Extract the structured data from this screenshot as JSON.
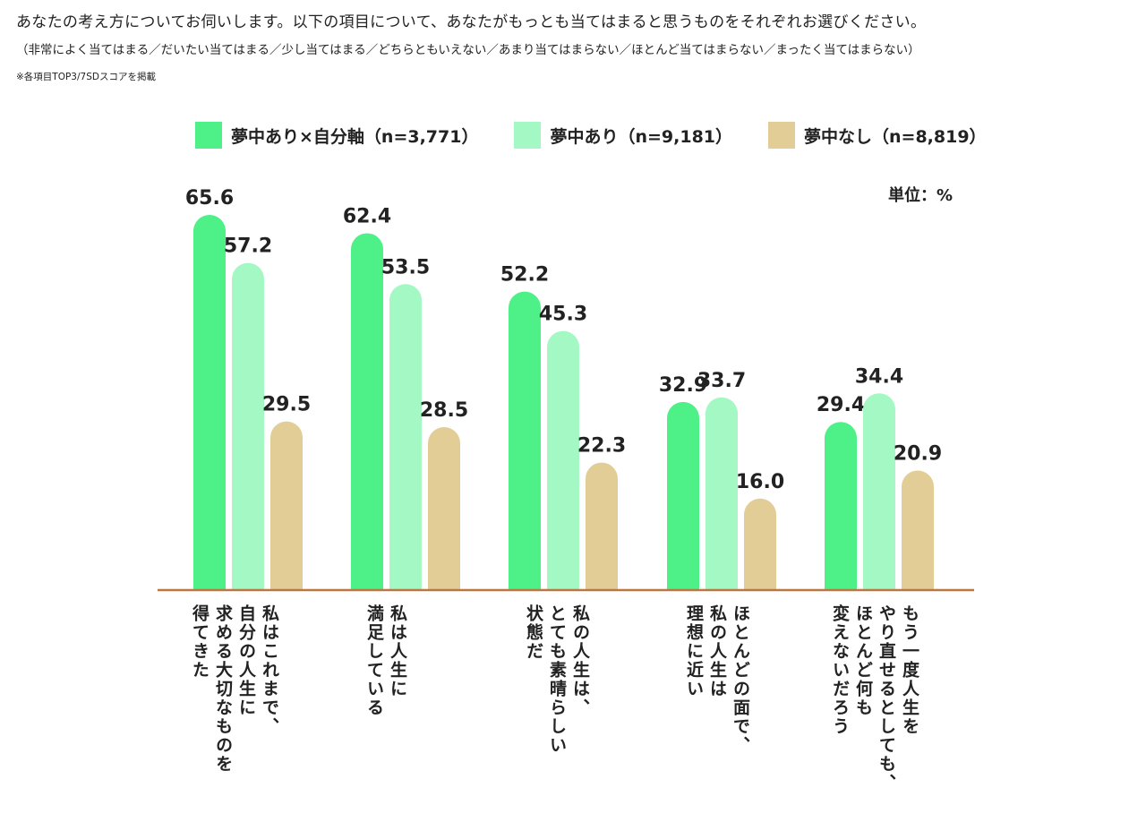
{
  "header": {
    "title": "あなたの考え方についてお伺いします。以下の項目について、あなたがもっとも当てはまると思うものをそれぞれお選びください。",
    "subtitle": "（非常によく当てはまる／だいたい当てはまる／少し当てはまる／どちらともいえない／あまり当てはまらない／ほとんど当てはまらない／まったく当てはまらない）",
    "note": "※各項目TOP3/7SDスコアを掲載"
  },
  "legend": [
    {
      "label": "夢中あり×自分軸（n=3,771）",
      "color": "#4ef088"
    },
    {
      "label": "夢中あり（n=9,181）",
      "color": "#a4f8c4"
    },
    {
      "label": "夢中なし（n=8,819）",
      "color": "#e2cd96"
    }
  ],
  "unit_label": "単位：%",
  "colors": {
    "axis": "#b87840",
    "text": "#222222"
  },
  "chart_data": {
    "type": "bar",
    "categories": [
      "私はこれまで、\n自分の人生に\n求める大切なものを\n得てきた",
      "私は人生に\n満足している",
      "私の人生は、\nとても素晴らしい\n状態だ",
      "ほとんどの面で、\n私の人生は\n理想に近い",
      "もう一度人生を\nやり直せるとしても、\nほとんど何も\n変えないだろう"
    ],
    "series": [
      {
        "name": "夢中あり×自分軸（n=3,771）",
        "values": [
          65.6,
          62.4,
          52.2,
          32.9,
          29.4
        ]
      },
      {
        "name": "夢中あり（n=9,181）",
        "values": [
          57.2,
          53.5,
          45.3,
          33.7,
          34.4
        ]
      },
      {
        "name": "夢中なし（n=8,819）",
        "values": [
          29.5,
          28.5,
          22.3,
          16.0,
          20.9
        ]
      }
    ],
    "value_labels": [
      [
        "65.6",
        "62.4",
        "52.2",
        "32.9",
        "29.4"
      ],
      [
        "57.2",
        "53.5",
        "45.3",
        "33.7",
        "34.4"
      ],
      [
        "29.5",
        "28.5",
        "22.3",
        "16.0",
        "20.9"
      ]
    ],
    "ylim": [
      0,
      100
    ],
    "grid": false,
    "legend_position": "top"
  }
}
